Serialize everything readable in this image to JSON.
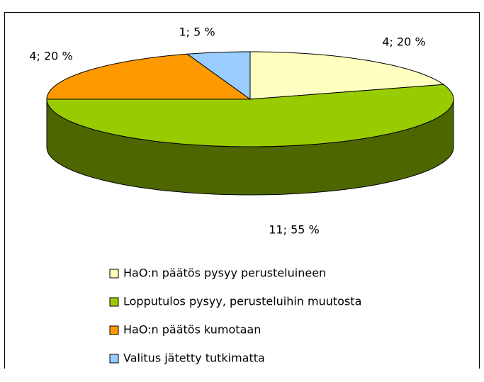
{
  "chart_data": {
    "type": "pie",
    "categories": [
      "HaO:n päätös pysyy perusteluineen",
      "Lopputulos pysyy, perusteluihin muutosta",
      "HaO:n päätös kumotaan",
      "Valitus jätetty tutkimatta"
    ],
    "values": [
      4,
      11,
      4,
      1
    ],
    "value_labels": [
      "4; 20 %",
      "11; 55 %",
      "4; 20 %",
      "1; 5 %"
    ],
    "colors": [
      "#ffffc0",
      "#99cc00",
      "#ff9900",
      "#99ccff"
    ],
    "side_colors": [
      "#80805f",
      "#4d6600",
      "#804c00",
      "#4d6680"
    ],
    "legend": "bottom"
  }
}
